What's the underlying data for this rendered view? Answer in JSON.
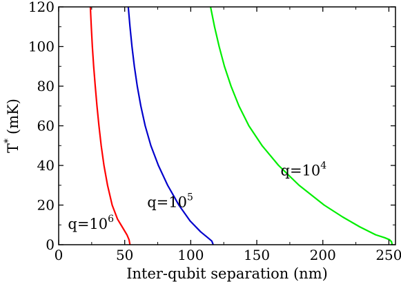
{
  "chart_data": {
    "type": "line",
    "title": "",
    "xlabel": "Inter-qubit separation (nm)",
    "ylabel": {
      "base": "T",
      "sup": "*",
      "unit": "(mK)"
    },
    "xlim": [
      0,
      255
    ],
    "ylim": [
      0,
      120
    ],
    "x_ticks": [
      0,
      50,
      100,
      150,
      200,
      250
    ],
    "y_ticks": [
      0,
      20,
      40,
      60,
      80,
      100,
      120
    ],
    "grid": false,
    "legend": "none",
    "series": [
      {
        "label": {
          "base": "q=10",
          "exp": "6"
        },
        "color": "#ff0000",
        "points": [
          [
            24.0,
            120
          ],
          [
            24.7,
            110
          ],
          [
            25.5,
            100
          ],
          [
            26.5,
            90
          ],
          [
            27.7,
            80
          ],
          [
            29.0,
            70
          ],
          [
            30.5,
            60
          ],
          [
            32.2,
            50
          ],
          [
            34.3,
            40
          ],
          [
            37.0,
            30
          ],
          [
            40.5,
            20
          ],
          [
            44.5,
            13
          ],
          [
            49.0,
            8
          ],
          [
            51.7,
            5
          ],
          [
            53.3,
            2.5
          ],
          [
            54.0,
            0
          ]
        ]
      },
      {
        "label": {
          "base": "q=10",
          "exp": "5"
        },
        "color": "#0000cc",
        "points": [
          [
            52.7,
            120
          ],
          [
            54.0,
            110
          ],
          [
            55.5,
            100
          ],
          [
            57.3,
            90
          ],
          [
            59.5,
            80
          ],
          [
            62.2,
            70
          ],
          [
            65.5,
            60
          ],
          [
            69.8,
            50
          ],
          [
            75.5,
            40
          ],
          [
            82.5,
            30
          ],
          [
            91.0,
            20
          ],
          [
            99.5,
            12
          ],
          [
            107.5,
            6.5
          ],
          [
            113.0,
            3.5
          ],
          [
            116.0,
            1.8
          ],
          [
            117.0,
            0
          ]
        ]
      },
      {
        "label": {
          "base": "q=10",
          "exp": "4"
        },
        "color": "#00ee00",
        "points": [
          [
            115.0,
            120
          ],
          [
            118.0,
            110
          ],
          [
            121.5,
            100
          ],
          [
            125.5,
            90
          ],
          [
            130.5,
            80
          ],
          [
            136.5,
            70
          ],
          [
            144.0,
            60
          ],
          [
            154.0,
            50
          ],
          [
            166.5,
            40
          ],
          [
            182.0,
            30
          ],
          [
            201.0,
            20
          ],
          [
            215.0,
            14
          ],
          [
            228.0,
            9
          ],
          [
            240.0,
            5
          ],
          [
            247.0,
            3.5
          ],
          [
            250.5,
            2.5
          ],
          [
            252.0,
            1.5
          ],
          [
            252.5,
            0
          ]
        ]
      }
    ],
    "annotations": [
      {
        "base": "q=10",
        "exp": "6",
        "x": 7,
        "y": 8
      },
      {
        "base": "q=10",
        "exp": "5",
        "x": 67,
        "y": 19
      },
      {
        "base": "q=10",
        "exp": "4",
        "x": 168,
        "y": 35
      }
    ]
  }
}
